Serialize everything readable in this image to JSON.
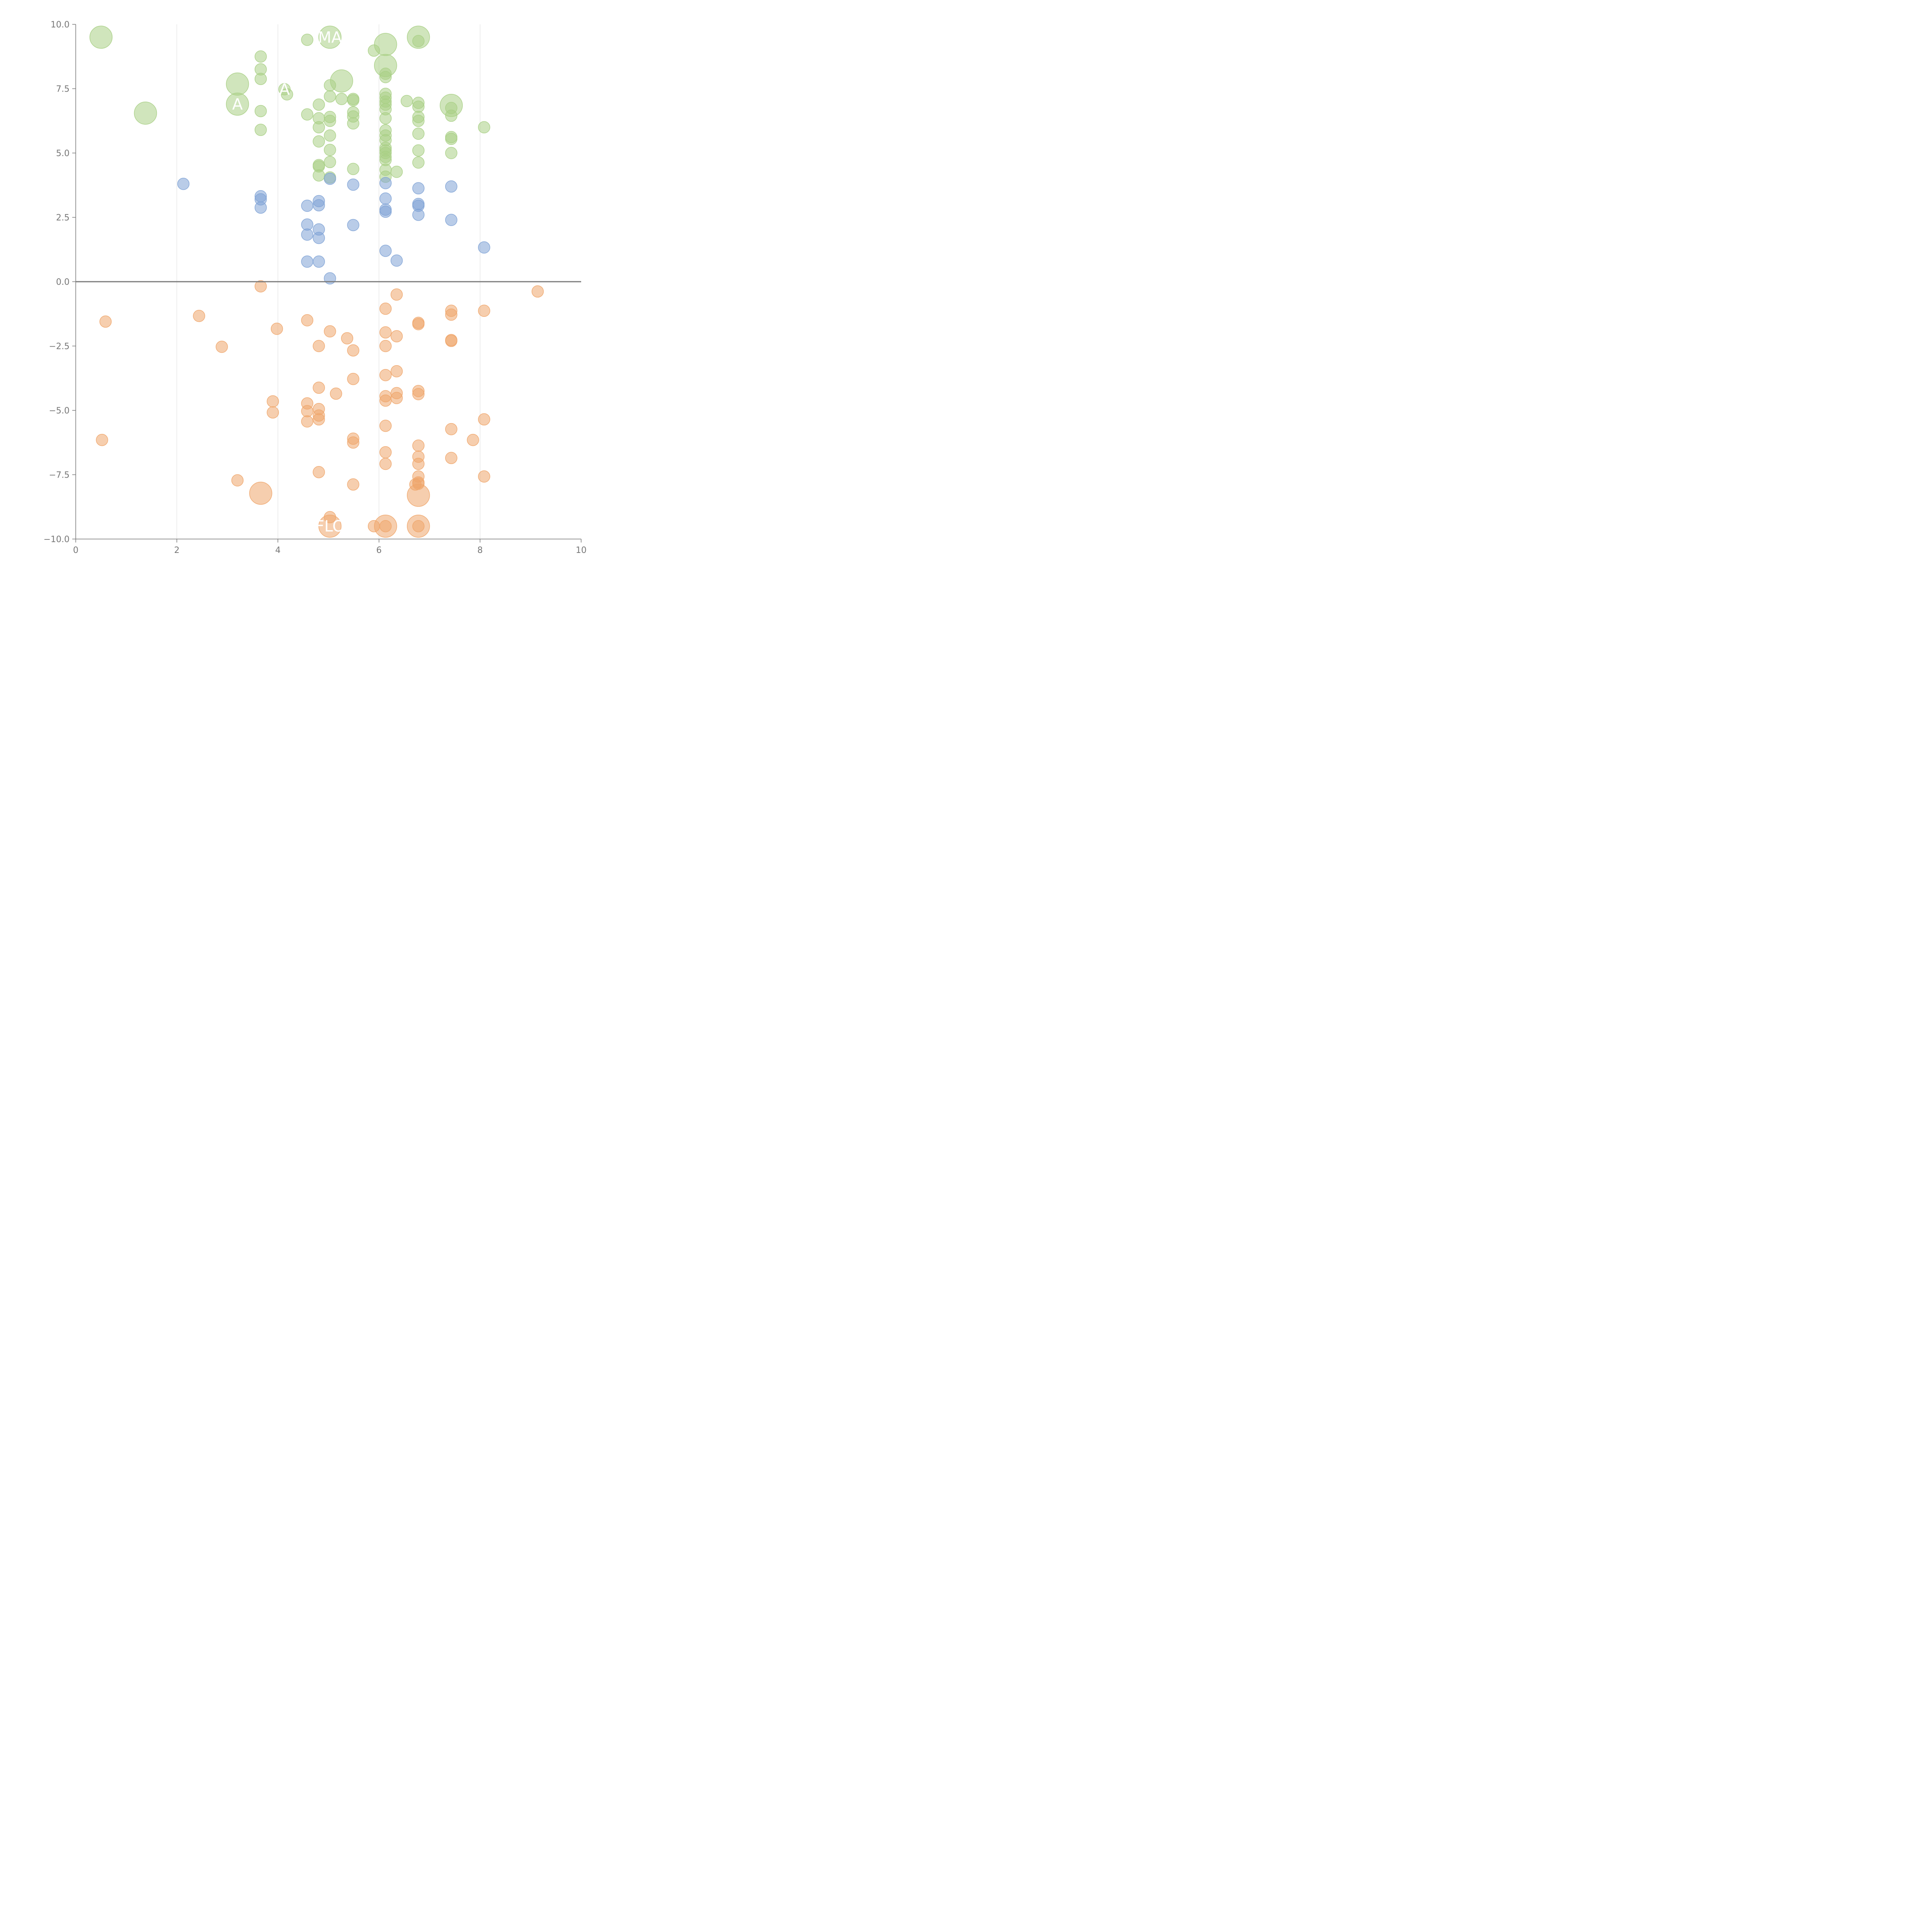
{
  "chart_data": {
    "type": "scatter",
    "title": "",
    "xlabel": "",
    "ylabel": "",
    "xlim": [
      0,
      10
    ],
    "ylim": [
      -10,
      10
    ],
    "x_ticks": [
      "0",
      "2",
      "4",
      "6",
      "8",
      "10"
    ],
    "y_ticks": [
      "10.0",
      "7.5",
      "5.0",
      "2.5",
      "0.0",
      "−2.5",
      "−5.0",
      "−7.5",
      "−10.0"
    ],
    "x_tick_values": [
      0,
      2,
      4,
      6,
      8,
      10
    ],
    "y_tick_values": [
      10,
      7.5,
      5,
      2.5,
      0,
      -2.5,
      -5,
      -7.5,
      -10
    ],
    "grid": "vertical",
    "zero_line": true,
    "colors": {
      "green": "#a9cf85",
      "blue": "#7fa3d6",
      "orange": "#efa66b"
    },
    "series": [
      {
        "color_key": "green",
        "points": [
          {
            "x": 0.5,
            "y": 9.5,
            "big": true
          },
          {
            "x": 1.38,
            "y": 6.55,
            "big": true
          },
          {
            "x": 3.2,
            "y": 7.68,
            "big": true
          },
          {
            "x": 3.2,
            "y": 6.9,
            "big": true
          },
          {
            "x": 5.03,
            "y": 9.5,
            "big": true
          },
          {
            "x": 5.26,
            "y": 7.8,
            "big": true
          },
          {
            "x": 6.13,
            "y": 9.22,
            "big": true
          },
          {
            "x": 6.13,
            "y": 8.4,
            "big": true
          },
          {
            "x": 6.78,
            "y": 9.5,
            "big": true
          },
          {
            "x": 7.43,
            "y": 6.85,
            "big": true
          },
          {
            "x": 3.66,
            "y": 8.75
          },
          {
            "x": 3.66,
            "y": 8.25
          },
          {
            "x": 3.66,
            "y": 7.88
          },
          {
            "x": 3.66,
            "y": 6.63
          },
          {
            "x": 3.66,
            "y": 5.9
          },
          {
            "x": 4.13,
            "y": 7.48
          },
          {
            "x": 4.18,
            "y": 7.28
          },
          {
            "x": 4.58,
            "y": 9.4
          },
          {
            "x": 4.58,
            "y": 6.5
          },
          {
            "x": 4.81,
            "y": 6.88
          },
          {
            "x": 4.81,
            "y": 6.35
          },
          {
            "x": 4.81,
            "y": 6.0
          },
          {
            "x": 4.81,
            "y": 5.45
          },
          {
            "x": 4.81,
            "y": 4.53
          },
          {
            "x": 4.81,
            "y": 4.48
          },
          {
            "x": 4.81,
            "y": 4.13
          },
          {
            "x": 5.03,
            "y": 7.63
          },
          {
            "x": 5.03,
            "y": 7.2
          },
          {
            "x": 5.03,
            "y": 6.4
          },
          {
            "x": 5.03,
            "y": 6.25
          },
          {
            "x": 5.03,
            "y": 5.68
          },
          {
            "x": 5.03,
            "y": 5.12
          },
          {
            "x": 5.03,
            "y": 4.65
          },
          {
            "x": 5.03,
            "y": 4.05
          },
          {
            "x": 5.26,
            "y": 7.1
          },
          {
            "x": 5.49,
            "y": 7.1
          },
          {
            "x": 5.49,
            "y": 7.05
          },
          {
            "x": 5.49,
            "y": 6.58
          },
          {
            "x": 5.49,
            "y": 6.42
          },
          {
            "x": 5.49,
            "y": 6.15
          },
          {
            "x": 5.49,
            "y": 4.38
          },
          {
            "x": 5.9,
            "y": 8.98
          },
          {
            "x": 6.13,
            "y": 8.08
          },
          {
            "x": 6.13,
            "y": 7.95
          },
          {
            "x": 6.13,
            "y": 7.3
          },
          {
            "x": 6.13,
            "y": 7.15
          },
          {
            "x": 6.13,
            "y": 7.0
          },
          {
            "x": 6.13,
            "y": 6.88
          },
          {
            "x": 6.13,
            "y": 6.7
          },
          {
            "x": 6.13,
            "y": 6.35
          },
          {
            "x": 6.13,
            "y": 5.88
          },
          {
            "x": 6.13,
            "y": 5.68
          },
          {
            "x": 6.13,
            "y": 5.5
          },
          {
            "x": 6.13,
            "y": 5.2
          },
          {
            "x": 6.13,
            "y": 5.1
          },
          {
            "x": 6.13,
            "y": 5.0
          },
          {
            "x": 6.13,
            "y": 4.85
          },
          {
            "x": 6.13,
            "y": 4.73
          },
          {
            "x": 6.13,
            "y": 4.35
          },
          {
            "x": 6.13,
            "y": 4.08
          },
          {
            "x": 6.35,
            "y": 4.27
          },
          {
            "x": 6.55,
            "y": 7.02
          },
          {
            "x": 6.78,
            "y": 9.35
          },
          {
            "x": 6.78,
            "y": 6.95
          },
          {
            "x": 6.78,
            "y": 6.8
          },
          {
            "x": 6.78,
            "y": 6.4
          },
          {
            "x": 6.78,
            "y": 6.25
          },
          {
            "x": 6.78,
            "y": 5.75
          },
          {
            "x": 6.78,
            "y": 5.1
          },
          {
            "x": 6.78,
            "y": 4.63
          },
          {
            "x": 7.43,
            "y": 6.75
          },
          {
            "x": 7.43,
            "y": 6.45
          },
          {
            "x": 7.43,
            "y": 5.62
          },
          {
            "x": 7.43,
            "y": 5.55
          },
          {
            "x": 7.43,
            "y": 5.0
          },
          {
            "x": 8.08,
            "y": 6.0
          }
        ]
      },
      {
        "color_key": "blue",
        "points": [
          {
            "x": 2.13,
            "y": 3.8
          },
          {
            "x": 3.66,
            "y": 3.32
          },
          {
            "x": 3.66,
            "y": 3.2
          },
          {
            "x": 3.66,
            "y": 2.88
          },
          {
            "x": 4.58,
            "y": 2.95
          },
          {
            "x": 4.58,
            "y": 2.22
          },
          {
            "x": 4.58,
            "y": 1.83
          },
          {
            "x": 4.58,
            "y": 0.78
          },
          {
            "x": 4.81,
            "y": 3.13
          },
          {
            "x": 4.81,
            "y": 2.97
          },
          {
            "x": 4.81,
            "y": 2.03
          },
          {
            "x": 4.81,
            "y": 1.7
          },
          {
            "x": 4.81,
            "y": 0.78
          },
          {
            "x": 5.03,
            "y": 4.0
          },
          {
            "x": 5.03,
            "y": 0.13
          },
          {
            "x": 5.49,
            "y": 3.77
          },
          {
            "x": 5.49,
            "y": 2.2
          },
          {
            "x": 6.13,
            "y": 3.83
          },
          {
            "x": 6.13,
            "y": 3.23
          },
          {
            "x": 6.13,
            "y": 2.8
          },
          {
            "x": 6.13,
            "y": 2.72
          },
          {
            "x": 6.13,
            "y": 1.2
          },
          {
            "x": 6.35,
            "y": 0.82
          },
          {
            "x": 6.78,
            "y": 3.63
          },
          {
            "x": 6.78,
            "y": 3.02
          },
          {
            "x": 6.78,
            "y": 2.95
          },
          {
            "x": 6.78,
            "y": 2.6
          },
          {
            "x": 7.43,
            "y": 3.7
          },
          {
            "x": 7.43,
            "y": 2.4
          },
          {
            "x": 8.08,
            "y": 1.33
          }
        ]
      },
      {
        "color_key": "orange",
        "points": [
          {
            "x": 3.66,
            "y": -8.22,
            "big": true
          },
          {
            "x": 5.03,
            "y": -9.5,
            "big": true
          },
          {
            "x": 6.13,
            "y": -9.5,
            "big": true
          },
          {
            "x": 6.78,
            "y": -8.3,
            "big": true
          },
          {
            "x": 6.78,
            "y": -9.5,
            "big": true
          },
          {
            "x": 0.52,
            "y": -6.15
          },
          {
            "x": 0.59,
            "y": -1.55
          },
          {
            "x": 2.44,
            "y": -1.33
          },
          {
            "x": 2.89,
            "y": -2.53
          },
          {
            "x": 3.2,
            "y": -7.72
          },
          {
            "x": 3.66,
            "y": -0.18
          },
          {
            "x": 3.9,
            "y": -4.65
          },
          {
            "x": 3.9,
            "y": -5.08
          },
          {
            "x": 3.98,
            "y": -1.83
          },
          {
            "x": 4.58,
            "y": -1.5
          },
          {
            "x": 4.58,
            "y": -4.73
          },
          {
            "x": 4.58,
            "y": -5.03
          },
          {
            "x": 4.58,
            "y": -5.43
          },
          {
            "x": 4.81,
            "y": -2.5
          },
          {
            "x": 4.81,
            "y": -4.12
          },
          {
            "x": 4.81,
            "y": -4.95
          },
          {
            "x": 4.81,
            "y": -5.2
          },
          {
            "x": 4.81,
            "y": -5.35
          },
          {
            "x": 4.81,
            "y": -7.4
          },
          {
            "x": 5.03,
            "y": -1.93
          },
          {
            "x": 5.03,
            "y": -9.15
          },
          {
            "x": 5.15,
            "y": -4.35
          },
          {
            "x": 5.37,
            "y": -2.2
          },
          {
            "x": 5.49,
            "y": -2.67
          },
          {
            "x": 5.49,
            "y": -3.78
          },
          {
            "x": 5.49,
            "y": -6.1
          },
          {
            "x": 5.49,
            "y": -6.25
          },
          {
            "x": 5.49,
            "y": -7.88
          },
          {
            "x": 5.9,
            "y": -9.5
          },
          {
            "x": 6.13,
            "y": -1.05
          },
          {
            "x": 6.13,
            "y": -1.97
          },
          {
            "x": 6.13,
            "y": -2.5
          },
          {
            "x": 6.13,
            "y": -3.63
          },
          {
            "x": 6.13,
            "y": -4.45
          },
          {
            "x": 6.13,
            "y": -4.62
          },
          {
            "x": 6.13,
            "y": -5.6
          },
          {
            "x": 6.13,
            "y": -6.63
          },
          {
            "x": 6.13,
            "y": -7.08
          },
          {
            "x": 6.13,
            "y": -9.5
          },
          {
            "x": 6.35,
            "y": -0.5
          },
          {
            "x": 6.35,
            "y": -2.12
          },
          {
            "x": 6.35,
            "y": -3.48
          },
          {
            "x": 6.35,
            "y": -4.33
          },
          {
            "x": 6.35,
            "y": -4.52
          },
          {
            "x": 6.72,
            "y": -7.88
          },
          {
            "x": 6.78,
            "y": -1.6
          },
          {
            "x": 6.78,
            "y": -1.65
          },
          {
            "x": 6.78,
            "y": -4.25
          },
          {
            "x": 6.78,
            "y": -4.37
          },
          {
            "x": 6.78,
            "y": -6.37
          },
          {
            "x": 6.78,
            "y": -6.8
          },
          {
            "x": 6.78,
            "y": -7.08
          },
          {
            "x": 6.78,
            "y": -7.57
          },
          {
            "x": 6.78,
            "y": -7.8
          },
          {
            "x": 6.78,
            "y": -7.85
          },
          {
            "x": 6.78,
            "y": -9.5
          },
          {
            "x": 7.43,
            "y": -1.13
          },
          {
            "x": 7.43,
            "y": -1.28
          },
          {
            "x": 7.43,
            "y": -2.27
          },
          {
            "x": 7.43,
            "y": -2.3
          },
          {
            "x": 7.43,
            "y": -5.73
          },
          {
            "x": 7.43,
            "y": -6.85
          },
          {
            "x": 7.86,
            "y": -6.15
          },
          {
            "x": 8.08,
            "y": -1.13
          },
          {
            "x": 8.08,
            "y": -5.35
          },
          {
            "x": 8.08,
            "y": -7.57
          },
          {
            "x": 9.14,
            "y": -0.38
          }
        ]
      }
    ],
    "annotations": [
      {
        "text": "MA",
        "x": 5.03,
        "y": 9.5
      },
      {
        "text": "A",
        "x": 4.13,
        "y": 7.48
      },
      {
        "text": "A",
        "x": 3.2,
        "y": 6.9
      },
      {
        "text": "FLO",
        "x": 5.03,
        "y": -9.5
      }
    ]
  }
}
